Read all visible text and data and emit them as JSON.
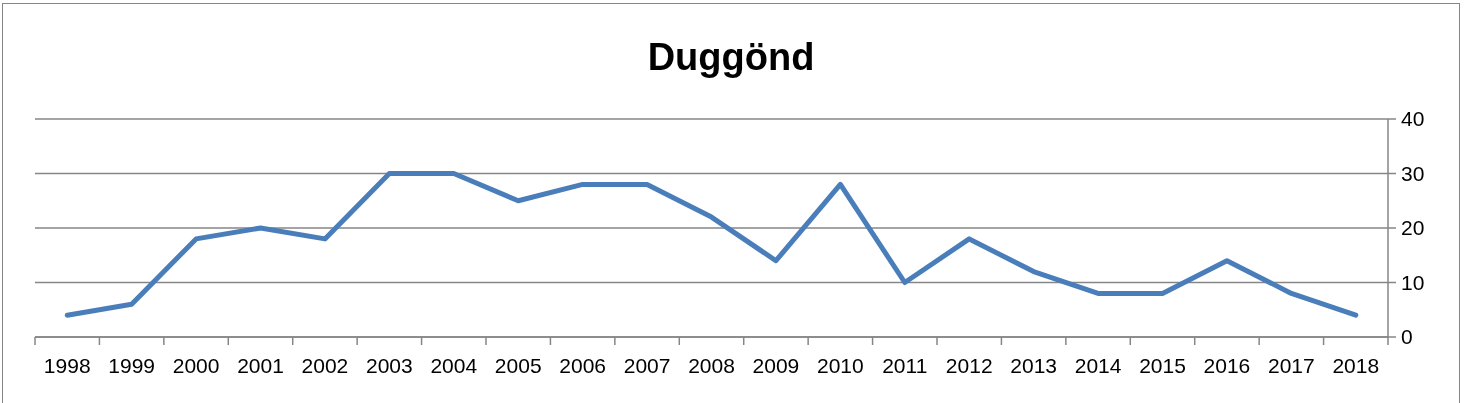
{
  "chart_data": {
    "type": "line",
    "title": "Duggönd",
    "categories": [
      "1998",
      "1999",
      "2000",
      "2001",
      "2002",
      "2003",
      "2004",
      "2005",
      "2006",
      "2007",
      "2008",
      "2009",
      "2010",
      "2011",
      "2012",
      "2013",
      "2014",
      "2015",
      "2016",
      "2017",
      "2018"
    ],
    "series": [
      {
        "color": "#4a7ebb",
        "values": [
          4,
          6,
          18,
          20,
          18,
          30,
          30,
          25,
          28,
          28,
          22,
          14,
          28,
          10,
          18,
          12,
          8,
          8,
          14,
          8,
          4
        ]
      }
    ],
    "ylim": [
      0,
      40
    ],
    "yticks": [
      0,
      10,
      20,
      30,
      40
    ],
    "grid": "y"
  }
}
